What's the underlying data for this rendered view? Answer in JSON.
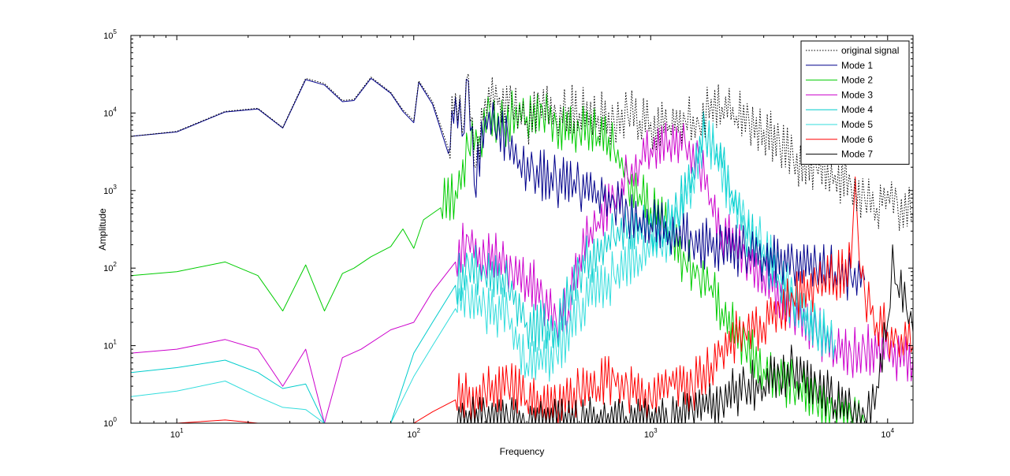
{
  "chart_data": {
    "type": "line",
    "title": "",
    "xlabel": "Frequency",
    "ylabel": "Amplitude",
    "xscale": "log",
    "yscale": "log",
    "xlim": [
      6.4,
      12800
    ],
    "ylim": [
      1,
      100000
    ],
    "grid": false,
    "legend_position": "top-right",
    "x_ticks": [
      {
        "value": 10,
        "base": "10",
        "exp": "1"
      },
      {
        "value": 100,
        "base": "10",
        "exp": "2"
      },
      {
        "value": 1000,
        "base": "10",
        "exp": "3"
      },
      {
        "value": 10000,
        "base": "10",
        "exp": "4"
      }
    ],
    "y_ticks": [
      {
        "value": 1,
        "base": "10",
        "exp": "0"
      },
      {
        "value": 10,
        "base": "10",
        "exp": "1"
      },
      {
        "value": 100,
        "base": "10",
        "exp": "2"
      },
      {
        "value": 1000,
        "base": "10",
        "exp": "3"
      },
      {
        "value": 10000,
        "base": "10",
        "exp": "4"
      },
      {
        "value": 100000,
        "base": "10",
        "exp": "5"
      }
    ],
    "series": [
      {
        "name": "original signal",
        "color": "#000000",
        "style": "dotted",
        "points": [
          [
            6.4,
            5000
          ],
          [
            10,
            5800
          ],
          [
            16,
            10500
          ],
          [
            22,
            11500
          ],
          [
            28,
            6500
          ],
          [
            35,
            28000
          ],
          [
            42,
            24000
          ],
          [
            50,
            14500
          ],
          [
            56,
            15000
          ],
          [
            66,
            29000
          ],
          [
            80,
            18500
          ],
          [
            90,
            11000
          ],
          [
            100,
            8000
          ],
          [
            105,
            26000
          ],
          [
            120,
            14000
          ],
          [
            140,
            3500
          ],
          [
            150,
            18000
          ],
          [
            160,
            5500
          ],
          [
            170,
            32000
          ],
          [
            180,
            2000
          ],
          [
            200,
            15000
          ],
          [
            230,
            16000
          ],
          [
            260,
            13000
          ],
          [
            300,
            8000
          ],
          [
            340,
            14000
          ],
          [
            400,
            9000
          ],
          [
            450,
            12000
          ],
          [
            500,
            10000
          ],
          [
            600,
            9000
          ],
          [
            700,
            8000
          ],
          [
            800,
            9500
          ],
          [
            900,
            8000
          ],
          [
            1000,
            7500
          ],
          [
            1200,
            7000
          ],
          [
            1400,
            8000
          ],
          [
            1600,
            7000
          ],
          [
            1800,
            15000
          ],
          [
            2000,
            12000
          ],
          [
            2300,
            9000
          ],
          [
            2600,
            8000
          ],
          [
            3000,
            6000
          ],
          [
            3500,
            4000
          ],
          [
            4000,
            2500
          ],
          [
            5000,
            2000
          ],
          [
            6000,
            1600
          ],
          [
            7000,
            1200
          ],
          [
            8000,
            800
          ],
          [
            9000,
            600
          ],
          [
            10000,
            1000
          ],
          [
            11000,
            700
          ],
          [
            12800,
            500
          ]
        ]
      },
      {
        "name": "Mode 1",
        "color": "#00008B",
        "style": "solid",
        "points": [
          [
            6.4,
            5000
          ],
          [
            10,
            5700
          ],
          [
            16,
            10300
          ],
          [
            22,
            11300
          ],
          [
            28,
            6400
          ],
          [
            35,
            27000
          ],
          [
            42,
            23000
          ],
          [
            50,
            14000
          ],
          [
            56,
            14500
          ],
          [
            66,
            28000
          ],
          [
            80,
            18000
          ],
          [
            90,
            10500
          ],
          [
            100,
            7500
          ],
          [
            105,
            25000
          ],
          [
            120,
            13000
          ],
          [
            140,
            3000
          ],
          [
            150,
            16000
          ],
          [
            160,
            5000
          ],
          [
            170,
            26000
          ],
          [
            180,
            1200
          ],
          [
            200,
            9000
          ],
          [
            220,
            6000
          ],
          [
            250,
            5000
          ],
          [
            280,
            2500
          ],
          [
            320,
            1800
          ],
          [
            400,
            1300
          ],
          [
            500,
            1100
          ],
          [
            600,
            1000
          ],
          [
            700,
            700
          ],
          [
            800,
            550
          ],
          [
            900,
            450
          ],
          [
            1000,
            380
          ],
          [
            1200,
            300
          ],
          [
            1500,
            220
          ],
          [
            2000,
            180
          ],
          [
            2500,
            160
          ],
          [
            3000,
            140
          ],
          [
            4000,
            110
          ],
          [
            5000,
            100
          ],
          [
            6000,
            90
          ],
          [
            7000,
            80
          ],
          [
            8000,
            70
          ]
        ]
      },
      {
        "name": "Mode 2",
        "color": "#00CC00",
        "style": "solid",
        "points": [
          [
            6.4,
            80
          ],
          [
            10,
            90
          ],
          [
            16,
            120
          ],
          [
            22,
            80
          ],
          [
            28,
            28
          ],
          [
            35,
            110
          ],
          [
            42,
            28
          ],
          [
            50,
            85
          ],
          [
            56,
            100
          ],
          [
            66,
            140
          ],
          [
            80,
            190
          ],
          [
            90,
            320
          ],
          [
            100,
            180
          ],
          [
            110,
            420
          ],
          [
            130,
            600
          ],
          [
            150,
            1000
          ],
          [
            170,
            3500
          ],
          [
            190,
            5000
          ],
          [
            210,
            10000
          ],
          [
            240,
            7000
          ],
          [
            270,
            12000
          ],
          [
            300,
            9000
          ],
          [
            350,
            11000
          ],
          [
            400,
            7000
          ],
          [
            500,
            6000
          ],
          [
            600,
            5000
          ],
          [
            700,
            3500
          ],
          [
            800,
            1500
          ],
          [
            900,
            900
          ],
          [
            1000,
            600
          ],
          [
            1200,
            300
          ],
          [
            1400,
            120
          ],
          [
            1600,
            80
          ],
          [
            1800,
            60
          ],
          [
            2000,
            30
          ],
          [
            2500,
            10
          ],
          [
            3000,
            5
          ],
          [
            4000,
            3
          ],
          [
            5000,
            2
          ],
          [
            6000,
            1.5
          ],
          [
            7000,
            1.2
          ],
          [
            8000,
            1
          ]
        ]
      },
      {
        "name": "Mode 3",
        "color": "#CC00CC",
        "style": "solid",
        "points": [
          [
            6.4,
            8
          ],
          [
            10,
            9
          ],
          [
            16,
            12
          ],
          [
            22,
            9
          ],
          [
            28,
            3
          ],
          [
            35,
            9
          ],
          [
            42,
            1
          ],
          [
            50,
            7
          ],
          [
            60,
            9
          ],
          [
            80,
            16
          ],
          [
            100,
            20
          ],
          [
            120,
            50
          ],
          [
            150,
            120
          ],
          [
            170,
            250
          ],
          [
            200,
            120
          ],
          [
            230,
            160
          ],
          [
            260,
            90
          ],
          [
            300,
            80
          ],
          [
            350,
            40
          ],
          [
            400,
            20
          ],
          [
            450,
            30
          ],
          [
            500,
            150
          ],
          [
            600,
            400
          ],
          [
            700,
            800
          ],
          [
            800,
            1500
          ],
          [
            900,
            2500
          ],
          [
            1000,
            3500
          ],
          [
            1200,
            4500
          ],
          [
            1400,
            4000
          ],
          [
            1600,
            2500
          ],
          [
            1800,
            800
          ],
          [
            2000,
            300
          ],
          [
            2500,
            150
          ],
          [
            3000,
            80
          ],
          [
            4000,
            30
          ],
          [
            5000,
            15
          ],
          [
            6000,
            10
          ],
          [
            7000,
            8
          ],
          [
            8000,
            9
          ],
          [
            10000,
            8
          ],
          [
            12800,
            7
          ]
        ]
      },
      {
        "name": "Mode 4",
        "color": "#00CCCC",
        "style": "solid",
        "points": [
          [
            6.4,
            4.5
          ],
          [
            10,
            5.2
          ],
          [
            16,
            6.5
          ],
          [
            22,
            4.5
          ],
          [
            28,
            2.8
          ],
          [
            35,
            3.2
          ],
          [
            42,
            1
          ],
          [
            60,
            1
          ],
          [
            80,
            1
          ],
          [
            100,
            8
          ],
          [
            120,
            20
          ],
          [
            150,
            60
          ],
          [
            170,
            120
          ],
          [
            200,
            80
          ],
          [
            250,
            60
          ],
          [
            300,
            20
          ],
          [
            400,
            15
          ],
          [
            500,
            100
          ],
          [
            700,
            250
          ],
          [
            900,
            400
          ],
          [
            1100,
            300
          ],
          [
            1300,
            500
          ],
          [
            1500,
            2000
          ],
          [
            1700,
            6000
          ],
          [
            1900,
            4000
          ],
          [
            2200,
            1000
          ],
          [
            2500,
            300
          ],
          [
            3000,
            150
          ],
          [
            3500,
            60
          ],
          [
            4000,
            30
          ],
          [
            5000,
            15
          ],
          [
            6000,
            10
          ]
        ]
      },
      {
        "name": "Mode 5",
        "color": "#33DDDD",
        "style": "solid",
        "points": [
          [
            6.4,
            2.2
          ],
          [
            10,
            2.6
          ],
          [
            16,
            3.5
          ],
          [
            22,
            2.2
          ],
          [
            28,
            1.6
          ],
          [
            35,
            1.5
          ],
          [
            42,
            1
          ],
          [
            60,
            1
          ],
          [
            80,
            1
          ],
          [
            100,
            4
          ],
          [
            120,
            10
          ],
          [
            150,
            30
          ],
          [
            170,
            50
          ],
          [
            200,
            30
          ],
          [
            250,
            25
          ],
          [
            300,
            6
          ],
          [
            400,
            8
          ],
          [
            500,
            30
          ],
          [
            700,
            80
          ],
          [
            900,
            150
          ],
          [
            1100,
            200
          ],
          [
            1300,
            400
          ],
          [
            1500,
            1500
          ],
          [
            1700,
            5000
          ],
          [
            1900,
            3000
          ],
          [
            2200,
            800
          ],
          [
            2500,
            400
          ],
          [
            3000,
            200
          ],
          [
            3500,
            100
          ],
          [
            4000,
            40
          ],
          [
            5000,
            20
          ],
          [
            6000,
            12
          ]
        ]
      },
      {
        "name": "Mode 6",
        "color": "#FF0000",
        "style": "solid",
        "points": [
          [
            6.4,
            1
          ],
          [
            10,
            1
          ],
          [
            16,
            1.1
          ],
          [
            22,
            1
          ],
          [
            100,
            1
          ],
          [
            120,
            1.4
          ],
          [
            150,
            2
          ],
          [
            200,
            2.5
          ],
          [
            250,
            3
          ],
          [
            300,
            2
          ],
          [
            400,
            1.5
          ],
          [
            500,
            2.5
          ],
          [
            600,
            3
          ],
          [
            700,
            4
          ],
          [
            800,
            3
          ],
          [
            1000,
            2
          ],
          [
            1200,
            4
          ],
          [
            1500,
            3
          ],
          [
            1800,
            6
          ],
          [
            2000,
            10
          ],
          [
            2500,
            15
          ],
          [
            3000,
            20
          ],
          [
            3500,
            30
          ],
          [
            4000,
            40
          ],
          [
            5000,
            60
          ],
          [
            6000,
            80
          ],
          [
            7000,
            100
          ],
          [
            7300,
            1500
          ],
          [
            7600,
            120
          ],
          [
            8000,
            50
          ],
          [
            9000,
            20
          ],
          [
            10000,
            15
          ],
          [
            11000,
            12
          ],
          [
            12800,
            10
          ]
        ]
      },
      {
        "name": "Mode 7",
        "color": "#000000",
        "style": "solid",
        "points": [
          [
            100,
            1
          ],
          [
            150,
            1
          ],
          [
            200,
            1.3
          ],
          [
            250,
            1.1
          ],
          [
            300,
            1
          ],
          [
            500,
            1
          ],
          [
            800,
            1
          ],
          [
            1200,
            1
          ],
          [
            1500,
            1.5
          ],
          [
            2000,
            2
          ],
          [
            2500,
            3
          ],
          [
            3000,
            3
          ],
          [
            3500,
            4
          ],
          [
            4000,
            5
          ],
          [
            5000,
            3
          ],
          [
            6000,
            2
          ],
          [
            7000,
            1.5
          ],
          [
            8000,
            1.2
          ],
          [
            9000,
            3
          ],
          [
            10000,
            20
          ],
          [
            10500,
            200
          ],
          [
            11000,
            60
          ],
          [
            12000,
            30
          ],
          [
            12800,
            15
          ]
        ]
      }
    ]
  }
}
